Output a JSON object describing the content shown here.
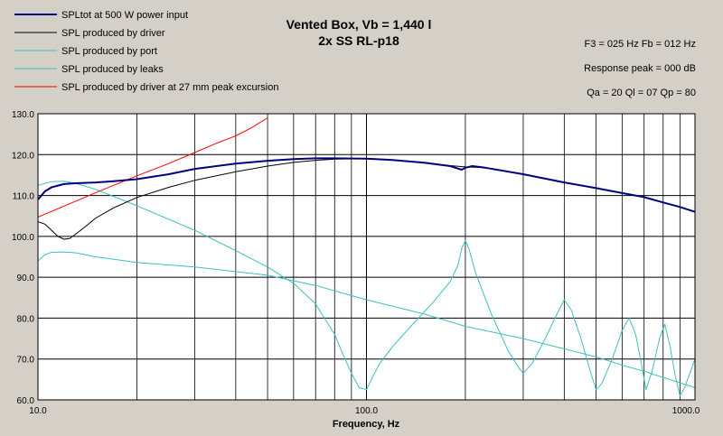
{
  "chart_data": {
    "type": "line",
    "title": "Vented Box, Vb = 1,440 l",
    "subtitle": "2x SS RL-p18",
    "xlabel": "Frequency, Hz",
    "ylabel": "",
    "xscale": "log",
    "xlim": [
      10,
      1000
    ],
    "ylim": [
      60,
      130
    ],
    "grid": true,
    "legend_position": "top-left",
    "x_ticks": [
      "10.0",
      "100.0",
      "1000.0"
    ],
    "y_ticks": [
      "60.0",
      "70.0",
      "80.0",
      "90.0",
      "100.0",
      "110.0",
      "120.0",
      "130.0"
    ],
    "info_lines": [
      "F3 = 025 Hz  Fb = 012 Hz",
      "Response peak = 000 dB",
      "Qa = 20  Ql = 07  Qp = 80"
    ],
    "series": [
      {
        "name": "SPLtot at 500 W power input",
        "color": "#00007f",
        "width": 2,
        "points": [
          [
            10,
            109
          ],
          [
            10.5,
            111
          ],
          [
            11,
            112
          ],
          [
            12,
            112.8
          ],
          [
            13,
            113
          ],
          [
            15,
            113.2
          ],
          [
            17,
            113.5
          ],
          [
            20,
            114
          ],
          [
            25,
            115.2
          ],
          [
            30,
            116.5
          ],
          [
            40,
            117.8
          ],
          [
            50,
            118.5
          ],
          [
            60,
            118.9
          ],
          [
            70,
            119.1
          ],
          [
            80,
            119.1
          ],
          [
            100,
            119
          ],
          [
            120,
            118.7
          ],
          [
            150,
            118
          ],
          [
            180,
            117.2
          ],
          [
            195,
            116.3
          ],
          [
            200,
            116.8
          ],
          [
            210,
            117.2
          ],
          [
            230,
            116.8
          ],
          [
            300,
            115.2
          ],
          [
            400,
            113.2
          ],
          [
            500,
            111.8
          ],
          [
            600,
            110.6
          ],
          [
            700,
            109.6
          ],
          [
            800,
            108.3
          ],
          [
            900,
            107.2
          ],
          [
            1000,
            106
          ]
        ]
      },
      {
        "name": "SPL produced by driver",
        "color": "#000000",
        "width": 1,
        "points": [
          [
            10,
            103.6
          ],
          [
            10.5,
            103
          ],
          [
            11,
            101.5
          ],
          [
            11.5,
            100
          ],
          [
            12,
            99.3
          ],
          [
            12.5,
            99.5
          ],
          [
            13,
            100.5
          ],
          [
            14,
            102.5
          ],
          [
            15,
            104.5
          ],
          [
            17,
            107
          ],
          [
            20,
            109.5
          ],
          [
            25,
            112
          ],
          [
            30,
            113.7
          ],
          [
            40,
            115.8
          ],
          [
            50,
            117.2
          ],
          [
            60,
            118.1
          ],
          [
            70,
            118.6
          ],
          [
            80,
            118.9
          ],
          [
            100,
            119
          ],
          [
            120,
            118.7
          ],
          [
            150,
            118
          ],
          [
            180,
            117.3
          ],
          [
            200,
            117
          ],
          [
            230,
            116.8
          ],
          [
            300,
            115.2
          ],
          [
            400,
            113.2
          ],
          [
            500,
            111.8
          ],
          [
            600,
            110.6
          ],
          [
            700,
            109.6
          ],
          [
            800,
            108.3
          ],
          [
            900,
            107.2
          ],
          [
            1000,
            106
          ]
        ]
      },
      {
        "name": "SPL produced by port",
        "color": "#3fbfbf",
        "width": 1,
        "points": [
          [
            10,
            112.5
          ],
          [
            11,
            113.4
          ],
          [
            12,
            113.5
          ],
          [
            13,
            113
          ],
          [
            15,
            111.5
          ],
          [
            20,
            107.5
          ],
          [
            30,
            101.5
          ],
          [
            40,
            96.5
          ],
          [
            50,
            92.5
          ],
          [
            60,
            88.5
          ],
          [
            70,
            83.5
          ],
          [
            80,
            76
          ],
          [
            85,
            71
          ],
          [
            90,
            66.5
          ],
          [
            95,
            63
          ],
          [
            100,
            62.5
          ],
          [
            105,
            66
          ],
          [
            110,
            69
          ],
          [
            120,
            73
          ],
          [
            140,
            79
          ],
          [
            160,
            84
          ],
          [
            180,
            89
          ],
          [
            190,
            93
          ],
          [
            195,
            97
          ],
          [
            200,
            99
          ],
          [
            205,
            97
          ],
          [
            215,
            91
          ],
          [
            240,
            81
          ],
          [
            270,
            72
          ],
          [
            290,
            68
          ],
          [
            300,
            66.5
          ],
          [
            320,
            69
          ],
          [
            350,
            75
          ],
          [
            380,
            81
          ],
          [
            400,
            84.5
          ],
          [
            420,
            82
          ],
          [
            450,
            75
          ],
          [
            480,
            67
          ],
          [
            500,
            62.5
          ],
          [
            520,
            64
          ],
          [
            560,
            70
          ],
          [
            600,
            77
          ],
          [
            630,
            80
          ],
          [
            660,
            76
          ],
          [
            690,
            68
          ],
          [
            710,
            62.5
          ],
          [
            740,
            67
          ],
          [
            780,
            75
          ],
          [
            810,
            78.5
          ],
          [
            840,
            73
          ],
          [
            870,
            66
          ],
          [
            900,
            61
          ],
          [
            930,
            63
          ],
          [
            980,
            68
          ],
          [
            1000,
            70
          ]
        ]
      },
      {
        "name": "SPL produced by leaks",
        "color": "#3fbfbf",
        "width": 1,
        "points": [
          [
            10,
            94
          ],
          [
            10.5,
            95.5
          ],
          [
            11,
            96.1
          ],
          [
            12,
            96.2
          ],
          [
            13,
            96
          ],
          [
            15,
            95
          ],
          [
            20,
            93.6
          ],
          [
            30,
            92.5
          ],
          [
            50,
            90.5
          ],
          [
            70,
            88
          ],
          [
            100,
            84.5
          ],
          [
            150,
            81
          ],
          [
            200,
            78
          ],
          [
            300,
            75
          ],
          [
            400,
            72.5
          ],
          [
            500,
            70.5
          ],
          [
            600,
            68.5
          ],
          [
            700,
            67
          ],
          [
            800,
            65.5
          ],
          [
            1000,
            63
          ]
        ]
      },
      {
        "name": "SPL produced by driver at 27 mm peak excursion",
        "color": "#ff0000",
        "width": 1,
        "points": [
          [
            10,
            104.7
          ],
          [
            15,
            110.7
          ],
          [
            20,
            114.8
          ],
          [
            25,
            117.8
          ],
          [
            30,
            120.5
          ],
          [
            35,
            122.8
          ],
          [
            40,
            124.6
          ],
          [
            44.5,
            126.5
          ],
          [
            50,
            129
          ]
        ]
      }
    ]
  }
}
